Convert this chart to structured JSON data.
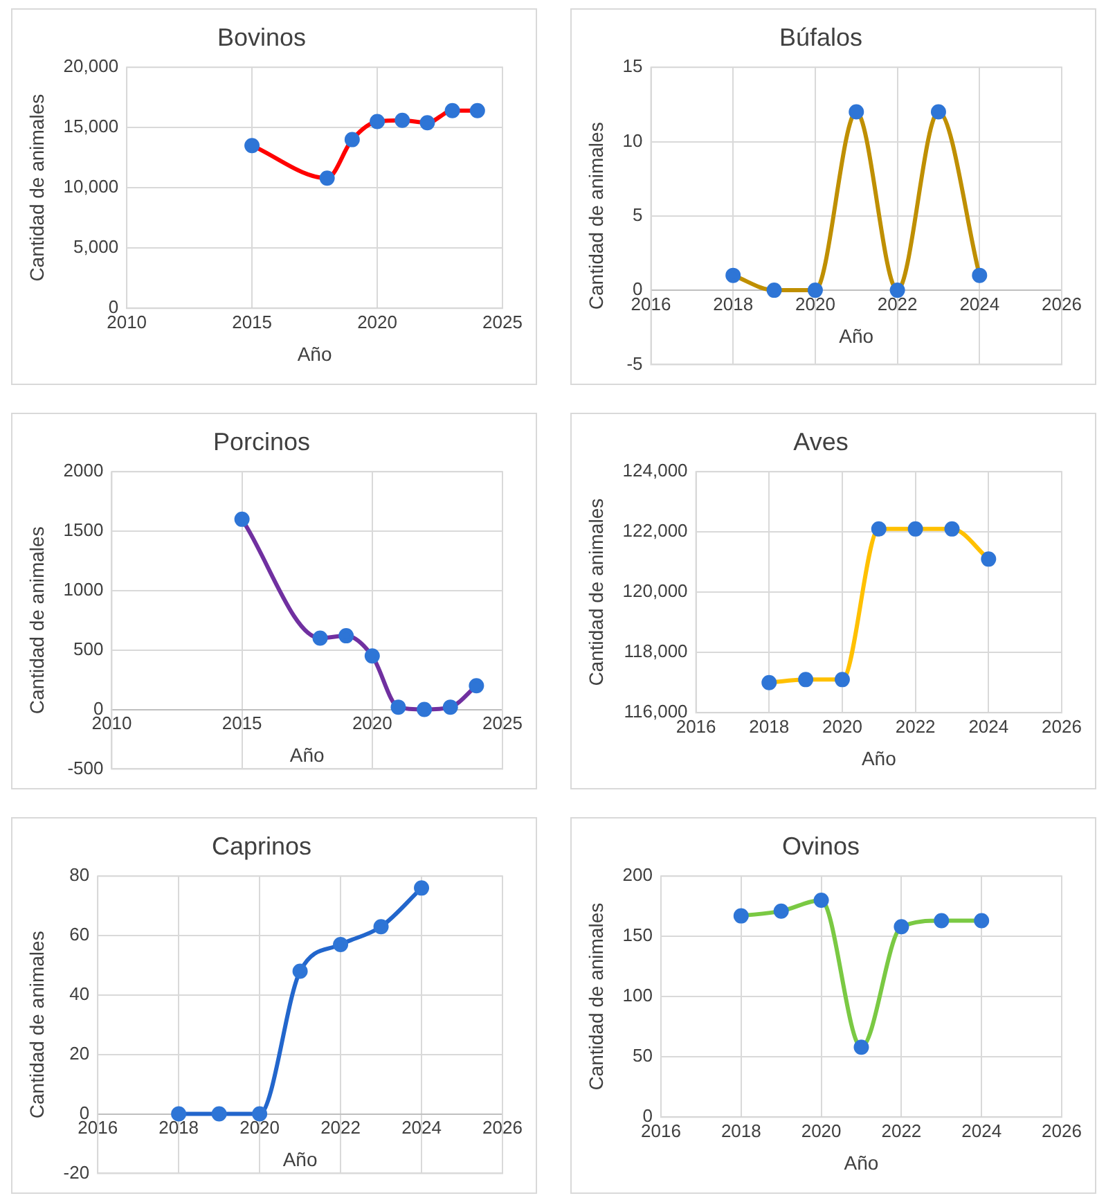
{
  "chart_data": [
    {
      "type": "line",
      "title": "Bovinos",
      "xlabel": "Año",
      "ylabel": "Cantidad de animales",
      "x": [
        2015,
        2018,
        2019,
        2020,
        2021,
        2022,
        2023,
        2024
      ],
      "xlim": [
        2010,
        2025
      ],
      "xticks": [
        2010,
        2015,
        2020,
        2025
      ],
      "ylim": [
        0,
        20000
      ],
      "yticks": [
        0,
        {
          "value": 5000,
          "label": "5,000"
        },
        {
          "value": 10000,
          "label": "10,000"
        },
        {
          "value": 15000,
          "label": "15,000"
        },
        {
          "value": 20000,
          "label": "20,000"
        }
      ],
      "grid": true,
      "marker": "circle",
      "series": [
        {
          "color": "#ff0000",
          "values": [
            13500,
            10800,
            14000,
            15500,
            15600,
            15400,
            16400,
            16400
          ]
        }
      ]
    },
    {
      "type": "line",
      "title": "Búfalos",
      "xlabel": "Año",
      "ylabel": "Cantidad de animales",
      "x": [
        2018,
        2019,
        2020,
        2021,
        2022,
        2023,
        2024
      ],
      "xlim": [
        2016,
        2026
      ],
      "xticks": [
        2016,
        2018,
        2020,
        2022,
        2024,
        2026
      ],
      "ylim": [
        -5,
        15
      ],
      "yticks": [
        -5,
        0,
        5,
        10,
        15
      ],
      "grid": true,
      "marker": "circle",
      "series": [
        {
          "color": "#bf8f00",
          "values": [
            1,
            0,
            0,
            12,
            0,
            12,
            1
          ]
        }
      ]
    },
    {
      "type": "line",
      "title": "Porcinos",
      "xlabel": "Año",
      "ylabel": "Cantidad de animales",
      "x": [
        2015,
        2018,
        2019,
        2020,
        2021,
        2022,
        2023,
        2024
      ],
      "xlim": [
        2010,
        2025
      ],
      "xticks": [
        2010,
        2015,
        2020,
        2025
      ],
      "ylim": [
        -500,
        2000
      ],
      "yticks": [
        -500,
        0,
        500,
        1000,
        1500,
        2000
      ],
      "grid": true,
      "marker": "circle",
      "series": [
        {
          "color": "#7030a0",
          "values": [
            1600,
            600,
            620,
            450,
            20,
            0,
            20,
            200
          ]
        }
      ]
    },
    {
      "type": "line",
      "title": "Aves",
      "xlabel": "Año",
      "ylabel": "Cantidad de animales",
      "x": [
        2018,
        2019,
        2020,
        2021,
        2022,
        2023,
        2024
      ],
      "xlim": [
        2016,
        2026
      ],
      "xticks": [
        2016,
        2018,
        2020,
        2022,
        2024,
        2026
      ],
      "ylim": [
        116000,
        124000
      ],
      "yticks": [
        {
          "value": 116000,
          "label": "116,000"
        },
        {
          "value": 118000,
          "label": "118,000"
        },
        {
          "value": 120000,
          "label": "120,000"
        },
        {
          "value": 122000,
          "label": "122,000"
        },
        {
          "value": 124000,
          "label": "124,000"
        }
      ],
      "grid": true,
      "marker": "circle",
      "series": [
        {
          "color": "#ffc000",
          "values": [
            117000,
            117100,
            117100,
            122100,
            122100,
            122100,
            121100
          ]
        }
      ]
    },
    {
      "type": "line",
      "title": "Caprinos",
      "xlabel": "Año",
      "ylabel": "Cantidad de animales",
      "x": [
        2018,
        2019,
        2020,
        2021,
        2022,
        2023,
        2024
      ],
      "xlim": [
        2016,
        2026
      ],
      "xticks": [
        2016,
        2018,
        2020,
        2022,
        2024,
        2026
      ],
      "ylim": [
        -20,
        80
      ],
      "yticks": [
        -20,
        0,
        20,
        40,
        60,
        80
      ],
      "grid": true,
      "marker": "circle",
      "series": [
        {
          "color": "#2266cc",
          "values": [
            0,
            0,
            0,
            48,
            57,
            63,
            76
          ]
        }
      ]
    },
    {
      "type": "line",
      "title": "Ovinos",
      "xlabel": "Año",
      "ylabel": "Cantidad de animales",
      "x": [
        2018,
        2019,
        2020,
        2021,
        2022,
        2023,
        2024
      ],
      "xlim": [
        2016,
        2026
      ],
      "xticks": [
        2016,
        2018,
        2020,
        2022,
        2024,
        2026
      ],
      "ylim": [
        0,
        200
      ],
      "yticks": [
        0,
        50,
        100,
        150,
        200
      ],
      "grid": true,
      "marker": "circle",
      "series": [
        {
          "color": "#7ac943",
          "values": [
            167,
            171,
            180,
            58,
            158,
            163,
            163
          ]
        }
      ]
    }
  ]
}
